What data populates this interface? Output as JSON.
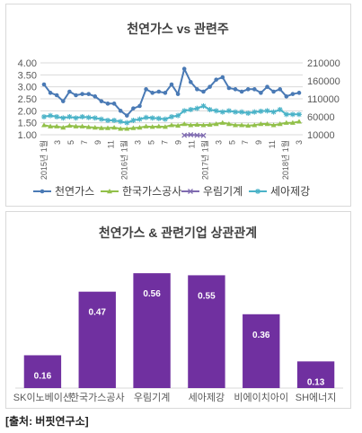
{
  "source_note": "[출처: 버핏연구소]",
  "colors": {
    "series1": "#4a7ab5",
    "series2": "#92c04a",
    "series3": "#7f6bb0",
    "series4": "#4bb3c8",
    "bar": "#7030a0",
    "grid": "#d9d9d9",
    "axis_text": "#595959"
  },
  "chart_data": [
    {
      "type": "line",
      "title": "천연가스 vs 관련주",
      "y_left": {
        "ticks": [
          "4.00",
          "3.50",
          "3.00",
          "2.50",
          "2.00",
          "1.50",
          "1.00"
        ],
        "ylim": [
          1.0,
          4.0
        ]
      },
      "y_right": {
        "ticks": [
          "210000",
          "160000",
          "110000",
          "60000",
          "10000"
        ],
        "ylim": [
          10000,
          210000
        ]
      },
      "x_labels": [
        "2015년 1월",
        "3",
        "5",
        "7",
        "9",
        "11",
        "2016년 1월",
        "3",
        "5",
        "7",
        "9",
        "11",
        "2017년 1월",
        "3",
        "5",
        "7",
        "9",
        "11",
        "2018년 1월",
        "3"
      ],
      "grid": true,
      "legend_position": "bottom",
      "series": [
        {
          "name": "천연가스",
          "axis": "left",
          "color_key": "series1",
          "marker": "circle",
          "values": [
            3.1,
            2.75,
            2.65,
            2.4,
            2.8,
            2.65,
            2.7,
            2.7,
            2.6,
            2.4,
            2.3,
            2.3,
            2.0,
            1.8,
            2.1,
            2.2,
            2.9,
            2.75,
            2.8,
            2.75,
            3.1,
            2.7,
            3.75,
            3.2,
            2.9,
            2.8,
            3.0,
            3.3,
            3.4,
            2.95,
            2.9,
            2.8,
            2.9,
            2.9,
            2.75,
            3.0,
            2.8,
            2.9,
            2.6,
            2.7,
            2.75
          ]
        },
        {
          "name": "한국가스공사",
          "axis": "left",
          "color_key": "series2",
          "marker": "triangle",
          "values": [
            1.4,
            1.35,
            1.35,
            1.3,
            1.38,
            1.35,
            1.35,
            1.32,
            1.3,
            1.28,
            1.28,
            1.3,
            1.25,
            1.25,
            1.28,
            1.3,
            1.35,
            1.33,
            1.35,
            1.33,
            1.4,
            1.38,
            1.45,
            1.4,
            1.42,
            1.4,
            1.42,
            1.45,
            1.5,
            1.45,
            1.4,
            1.4,
            1.38,
            1.4,
            1.45,
            1.45,
            1.4,
            1.45,
            1.5,
            1.5,
            1.55
          ]
        },
        {
          "name": "우림기계",
          "axis": "left",
          "color_key": "series3",
          "marker": "x",
          "values": [
            null,
            null,
            null,
            null,
            null,
            null,
            null,
            null,
            null,
            null,
            null,
            null,
            null,
            null,
            null,
            null,
            null,
            null,
            null,
            null,
            null,
            null,
            0.98,
            1.0,
            0.98,
            0.97,
            null,
            null,
            null,
            null,
            null,
            null,
            null,
            null,
            null,
            null,
            null,
            null,
            null,
            null,
            null
          ]
        },
        {
          "name": "세아제강",
          "axis": "left",
          "color_key": "series4",
          "marker": "star",
          "values": [
            1.75,
            1.8,
            1.75,
            1.7,
            1.75,
            1.7,
            1.75,
            1.72,
            1.7,
            1.65,
            1.6,
            1.6,
            1.55,
            1.5,
            1.6,
            1.65,
            1.72,
            1.7,
            1.68,
            1.65,
            1.75,
            1.8,
            2.0,
            2.05,
            2.1,
            2.2,
            2.05,
            2.0,
            1.95,
            2.0,
            1.95,
            1.95,
            1.9,
            1.95,
            1.98,
            2.0,
            1.95,
            2.05,
            1.85,
            1.85,
            1.85
          ]
        }
      ]
    },
    {
      "type": "bar",
      "title": "천연가스 & 관련기업 상관관계",
      "categories": [
        "SK이노베이션",
        "한국가스공사",
        "우림기계",
        "세아제강",
        "비에이치아이",
        "SH에너지"
      ],
      "values": [
        0.16,
        0.47,
        0.56,
        0.55,
        0.36,
        0.13
      ],
      "value_labels": [
        "0.16",
        "0.47",
        "0.56",
        "0.55",
        "0.36",
        "0.13"
      ],
      "ylim": [
        0,
        0.6
      ],
      "grid": false
    }
  ]
}
